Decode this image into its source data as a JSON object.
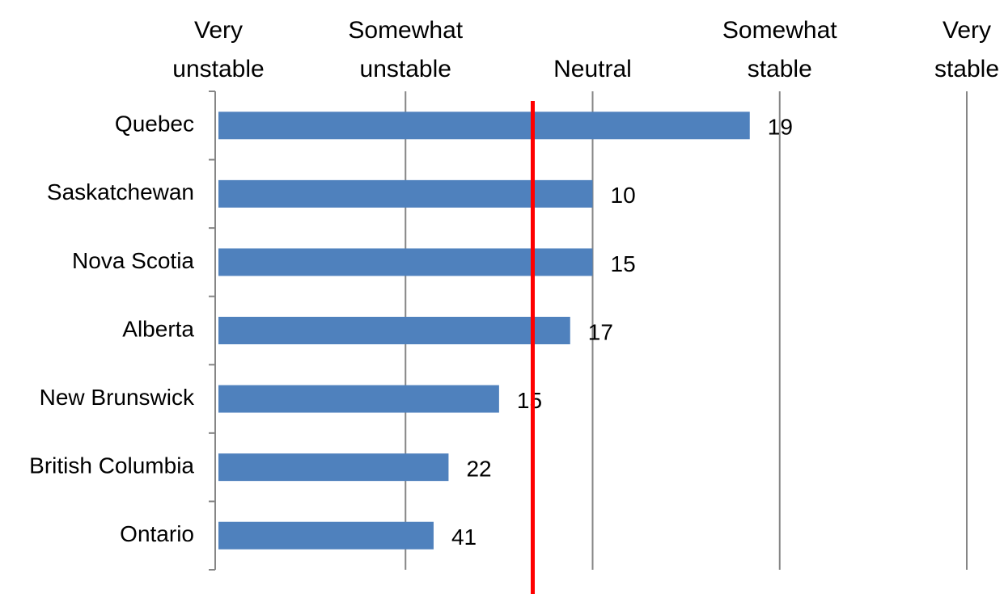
{
  "chart_data": {
    "type": "barh",
    "categories": [
      "Quebec",
      "Saskatchewan",
      "Nova Scotia",
      "Alberta",
      "New Brunswick",
      "British Columbia",
      "Ontario"
    ],
    "values": [
      3.84,
      3.0,
      3.0,
      2.88,
      2.5,
      2.23,
      2.15
    ],
    "labels": [
      19,
      10,
      15,
      17,
      15,
      22,
      41
    ],
    "color": "#4f81bd",
    "xlim": [
      1,
      5
    ],
    "xticks": [
      {
        "value": 1,
        "label": "Very\nunstable"
      },
      {
        "value": 2,
        "label": "Somewhat\nunstable"
      },
      {
        "value": 3,
        "label": "Neutral"
      },
      {
        "value": 4,
        "label": "Somewhat\nstable"
      },
      {
        "value": 5,
        "label": "Very\nstable"
      }
    ],
    "grid": true,
    "reference_line": {
      "value": 2.68,
      "color": "#ff0000"
    }
  }
}
